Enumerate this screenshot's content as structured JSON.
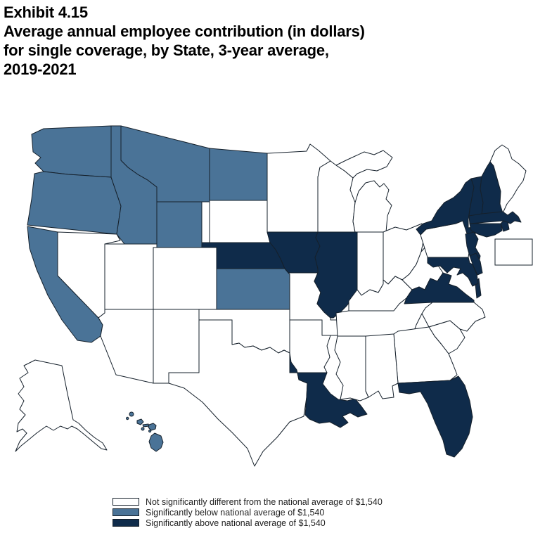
{
  "header": {
    "exhibit_label": "Exhibit 4.15",
    "title_line1": "Average annual employee contribution (in dollars)",
    "title_line2": "for single coverage, by State, 3-year average,",
    "title_line3": "2019-2021"
  },
  "colors": {
    "not_different": "#FFFFFF",
    "below": "#4A7397",
    "above": "#0F2B4A",
    "border": "#15202b",
    "background": "#FFFFFF"
  },
  "legend": {
    "items": [
      {
        "category": "not_different",
        "label": "Not significantly different from the national average of $1,540"
      },
      {
        "category": "below",
        "label": "Significantly below national average of $1,540"
      },
      {
        "category": "above",
        "label": "Significantly above national average of $1,540"
      }
    ]
  },
  "chart_data": {
    "type": "choropleth",
    "geography": "United States, by state (with AK, HI and DC inset)",
    "exhibit": "Exhibit 4.15",
    "title": "Average annual employee contribution (in dollars) for single coverage, by State, 3-year average, 2019-2021",
    "national_average": "$1,540",
    "legend_position": "bottom",
    "categories": {
      "not_different": "Not significantly different from the national average of $1,540",
      "below": "Significantly below national average of $1,540",
      "above": "Significantly above national average of $1,540"
    },
    "states": {
      "WA": "below",
      "OR": "below",
      "CA": "below",
      "ID": "below",
      "MT": "below",
      "WY": "below",
      "ND": "below",
      "KS": "below",
      "HI": "below",
      "NE": "above",
      "IA": "above",
      "IL": "above",
      "LA": "above",
      "FL": "above",
      "VA": "above",
      "MD": "above",
      "DE": "above",
      "NJ": "above",
      "NY": "above",
      "CT": "above",
      "RI": "above",
      "MA": "above",
      "NH": "above",
      "VT": "above",
      "AK": "not_different",
      "NV": "not_different",
      "UT": "not_different",
      "AZ": "not_different",
      "CO": "not_different",
      "NM": "not_different",
      "TX": "not_different",
      "OK": "not_different",
      "SD": "not_different",
      "MN": "not_different",
      "MO": "not_different",
      "AR": "not_different",
      "MS": "not_different",
      "AL": "not_different",
      "GA": "not_different",
      "SC": "not_different",
      "NC": "not_different",
      "TN": "not_different",
      "KY": "not_different",
      "WV": "not_different",
      "OH": "not_different",
      "IN": "not_different",
      "MI": "not_different",
      "WI": "not_different",
      "PA": "not_different",
      "ME": "not_different",
      "DC": "not_different"
    }
  }
}
